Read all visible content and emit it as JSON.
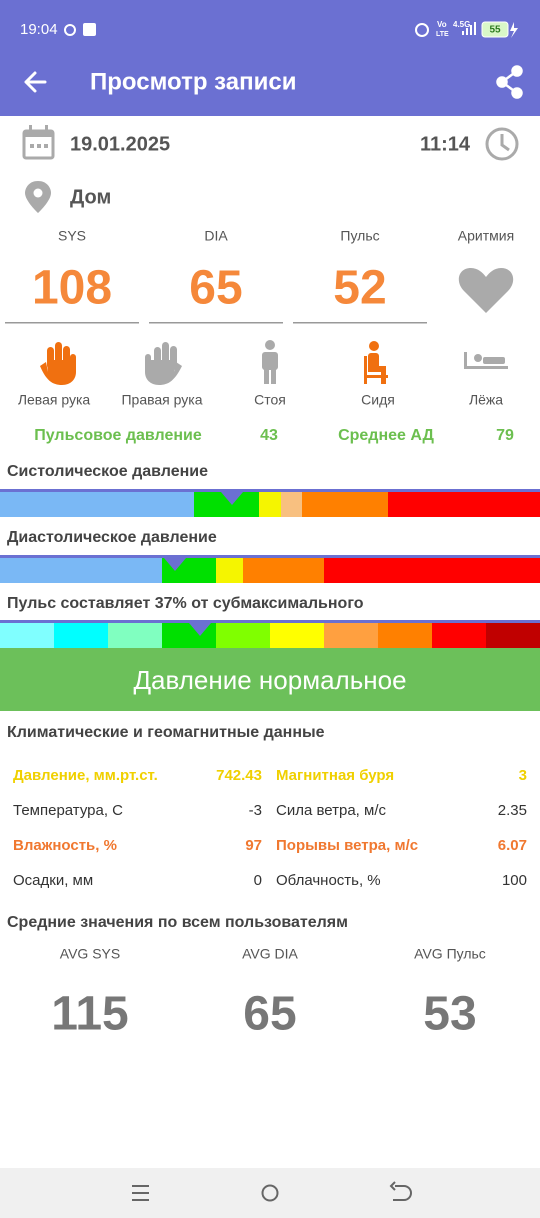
{
  "status_bar": {
    "time": "19:04",
    "volte_top": "Vo",
    "volte_bottom": "LTE",
    "network": "4.5G",
    "battery": "55"
  },
  "app_bar": {
    "title": "Просмотр записи"
  },
  "record": {
    "date": "19.01.2025",
    "time": "11:14",
    "location": "Дом"
  },
  "readings": [
    {
      "label": "SYS",
      "value": 108
    },
    {
      "label": "DIA",
      "value": 65
    },
    {
      "label": "Пульс",
      "value": 52
    }
  ],
  "arrhythmia_label": "Аритмия",
  "positions": [
    "Левая рука",
    "Правая рука",
    "Стоя",
    "Сидя",
    "Лёжа"
  ],
  "pulse_pressure": {
    "label": "Пульсовое давление",
    "value": 43
  },
  "mean_pressure": {
    "label": "Среднее АД",
    "value": 79
  },
  "scales": [
    {
      "title": "Систолическое давление"
    },
    {
      "title": "Диастолическое давление"
    },
    {
      "title": "Пульс составляет 37% от субмаксимального"
    }
  ],
  "verdict": "Давление нормальное",
  "climate": {
    "title": "Климатические и геомагнитные данные",
    "rows": [
      [
        "Давление, мм.рт.ст.",
        742.43,
        "Магнитная буря",
        3
      ],
      [
        "Температура, С",
        -3,
        "Сила ветра, м/с",
        2.35
      ],
      [
        "Влажность, %",
        97,
        "Порывы ветра, м/с",
        6.07
      ],
      [
        "Осадки, мм",
        0,
        "Облачность, %",
        100
      ]
    ]
  },
  "averages": {
    "title": "Средние значения по всем пользователям",
    "items": [
      {
        "label": "AVG SYS",
        "value": 115
      },
      {
        "label": "AVG DIA",
        "value": 65
      },
      {
        "label": "AVG Пульс",
        "value": 53
      }
    ]
  }
}
